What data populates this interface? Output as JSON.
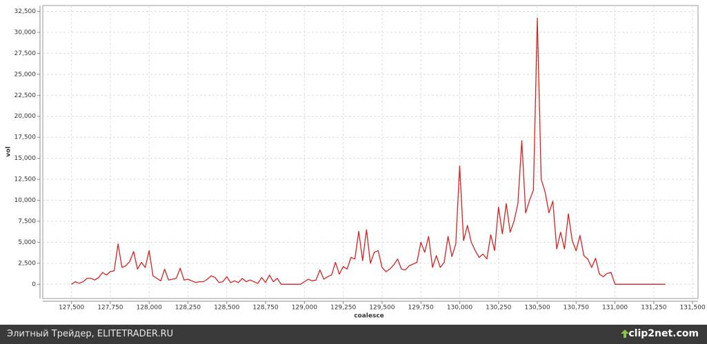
{
  "chart_data": {
    "type": "line",
    "x_label": "coalesce",
    "y_label": "vol",
    "color": "#d42020",
    "grid": true,
    "xlim": [
      127315,
      131535
    ],
    "ylim": [
      -1700,
      33200
    ],
    "xticks": [
      {
        "value": 127500,
        "label": "127,500"
      },
      {
        "value": 127750,
        "label": "127,750"
      },
      {
        "value": 128000,
        "label": "128,000"
      },
      {
        "value": 128250,
        "label": "128,250"
      },
      {
        "value": 128500,
        "label": "128,500"
      },
      {
        "value": 128750,
        "label": "128,750"
      },
      {
        "value": 129000,
        "label": "129,000"
      },
      {
        "value": 129250,
        "label": "129,250"
      },
      {
        "value": 129500,
        "label": "129,500"
      },
      {
        "value": 129750,
        "label": "129,750"
      },
      {
        "value": 130000,
        "label": "130,000"
      },
      {
        "value": 130250,
        "label": "130,250"
      },
      {
        "value": 130500,
        "label": "130,500"
      },
      {
        "value": 130750,
        "label": "130,750"
      },
      {
        "value": 131000,
        "label": "131,000"
      },
      {
        "value": 131250,
        "label": "131,250"
      },
      {
        "value": 131500,
        "label": "131,500"
      }
    ],
    "yticks": [
      0,
      {
        "value": 2500,
        "label": "2,500"
      },
      {
        "value": 5000,
        "label": "5,000"
      },
      {
        "value": 7500,
        "label": "7,500"
      },
      {
        "value": 10000,
        "label": "10,000"
      },
      {
        "value": 12500,
        "label": "12,500"
      },
      {
        "value": 15000,
        "label": "15,000"
      },
      {
        "value": 17500,
        "label": "17,500"
      },
      {
        "value": 20000,
        "label": "20,000"
      },
      {
        "value": 22500,
        "label": "22,500"
      },
      {
        "value": 25000,
        "label": "25,000"
      },
      {
        "value": 27500,
        "label": "27,500"
      },
      {
        "value": 30000,
        "label": "30,000"
      },
      {
        "value": 32500,
        "label": "32,500"
      }
    ],
    "x": [
      127500,
      127525,
      127550,
      127575,
      127600,
      127625,
      127650,
      127675,
      127700,
      127725,
      127750,
      127775,
      127800,
      127825,
      127850,
      127875,
      127900,
      127925,
      127950,
      127975,
      128000,
      128025,
      128050,
      128075,
      128100,
      128125,
      128150,
      128175,
      128200,
      128225,
      128250,
      128275,
      128300,
      128325,
      128350,
      128375,
      128400,
      128425,
      128450,
      128475,
      128500,
      128525,
      128550,
      128575,
      128600,
      128625,
      128650,
      128675,
      128700,
      128725,
      128750,
      128775,
      128800,
      128825,
      128850,
      128875,
      128900,
      128925,
      128950,
      128975,
      129000,
      129025,
      129050,
      129075,
      129100,
      129125,
      129150,
      129175,
      129200,
      129225,
      129250,
      129275,
      129300,
      129325,
      129350,
      129375,
      129400,
      129425,
      129450,
      129475,
      129500,
      129525,
      129550,
      129575,
      129600,
      129625,
      129650,
      129675,
      129700,
      129725,
      129750,
      129775,
      129800,
      129825,
      129850,
      129875,
      129900,
      129925,
      129950,
      129975,
      130000,
      130025,
      130050,
      130075,
      130100,
      130125,
      130150,
      130175,
      130200,
      130225,
      130250,
      130275,
      130300,
      130325,
      130350,
      130375,
      130400,
      130425,
      130450,
      130475,
      130500,
      130525,
      130550,
      130575,
      130600,
      130625,
      130650,
      130675,
      130700,
      130725,
      130750,
      130775,
      130800,
      130825,
      130850,
      130875,
      130900,
      130925,
      130950,
      130975,
      131000,
      131025,
      131050,
      131075,
      131100,
      131125,
      131150,
      131175,
      131200,
      131225,
      131250,
      131275,
      131300,
      131325
    ],
    "values": [
      0,
      300,
      100,
      300,
      700,
      700,
      500,
      800,
      1400,
      1100,
      1500,
      1600,
      4800,
      2000,
      2200,
      2700,
      3900,
      1800,
      2600,
      2000,
      4000,
      1000,
      700,
      400,
      1800,
      500,
      600,
      700,
      1900,
      500,
      600,
      400,
      200,
      300,
      300,
      600,
      1000,
      800,
      200,
      300,
      900,
      200,
      400,
      200,
      700,
      300,
      500,
      300,
      100,
      800,
      200,
      1100,
      300,
      700,
      0,
      0,
      0,
      0,
      0,
      0,
      300,
      600,
      400,
      500,
      1700,
      600,
      900,
      1100,
      2600,
      1200,
      2100,
      1800,
      3200,
      3000,
      6300,
      2800,
      6500,
      2500,
      3800,
      4000,
      2000,
      1500,
      1800,
      2300,
      3000,
      1800,
      1700,
      2200,
      2400,
      2600,
      5000,
      3800,
      5700,
      2000,
      3400,
      2000,
      2600,
      5700,
      3300,
      4800,
      14100,
      5200,
      7000,
      5000,
      4000,
      3200,
      3600,
      3000,
      5900,
      4000,
      9200,
      6000,
      9600,
      6200,
      7500,
      9600,
      17100,
      8500,
      10000,
      11200,
      31700,
      12500,
      11000,
      8500,
      9900,
      4200,
      6200,
      4200,
      8400,
      5200,
      4000,
      5800,
      3400,
      3000,
      2000,
      3100,
      1200,
      900,
      1300,
      1400,
      0,
      0,
      0,
      0,
      0,
      0,
      0,
      0,
      0,
      0,
      0,
      0,
      0,
      0
    ]
  },
  "footer": {
    "left": "Элитный Трейдер, ELITETRADER.RU",
    "right": "clip2net.com"
  }
}
